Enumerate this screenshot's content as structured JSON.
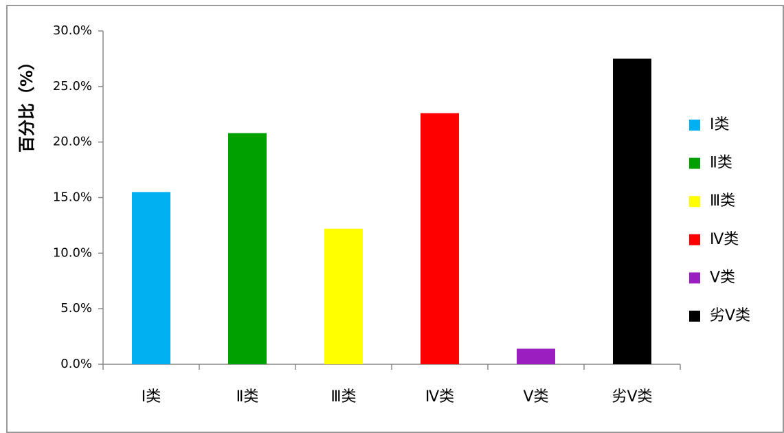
{
  "chart_data": {
    "type": "bar",
    "y_label": "百分比（%）",
    "categories": [
      "Ⅰ类",
      "Ⅱ类",
      "Ⅲ类",
      "Ⅳ类",
      "Ⅴ类",
      "劣Ⅴ类"
    ],
    "values": [
      15.5,
      20.8,
      12.2,
      22.6,
      1.4,
      27.5
    ],
    "colors": [
      "#00b0f0",
      "#00a000",
      "#ffff00",
      "#ff0000",
      "#9b1fc0",
      "#000000"
    ],
    "ylim": [
      0,
      30
    ],
    "yticks": [
      {
        "value": 0,
        "label": "0.0%"
      },
      {
        "value": 5,
        "label": "5.0%"
      },
      {
        "value": 10,
        "label": "10.0%"
      },
      {
        "value": 15,
        "label": "15.0%"
      },
      {
        "value": 20,
        "label": "20.0%"
      },
      {
        "value": 25,
        "label": "25.0%"
      },
      {
        "value": 30,
        "label": "30.0%"
      }
    ],
    "legend": "right"
  }
}
